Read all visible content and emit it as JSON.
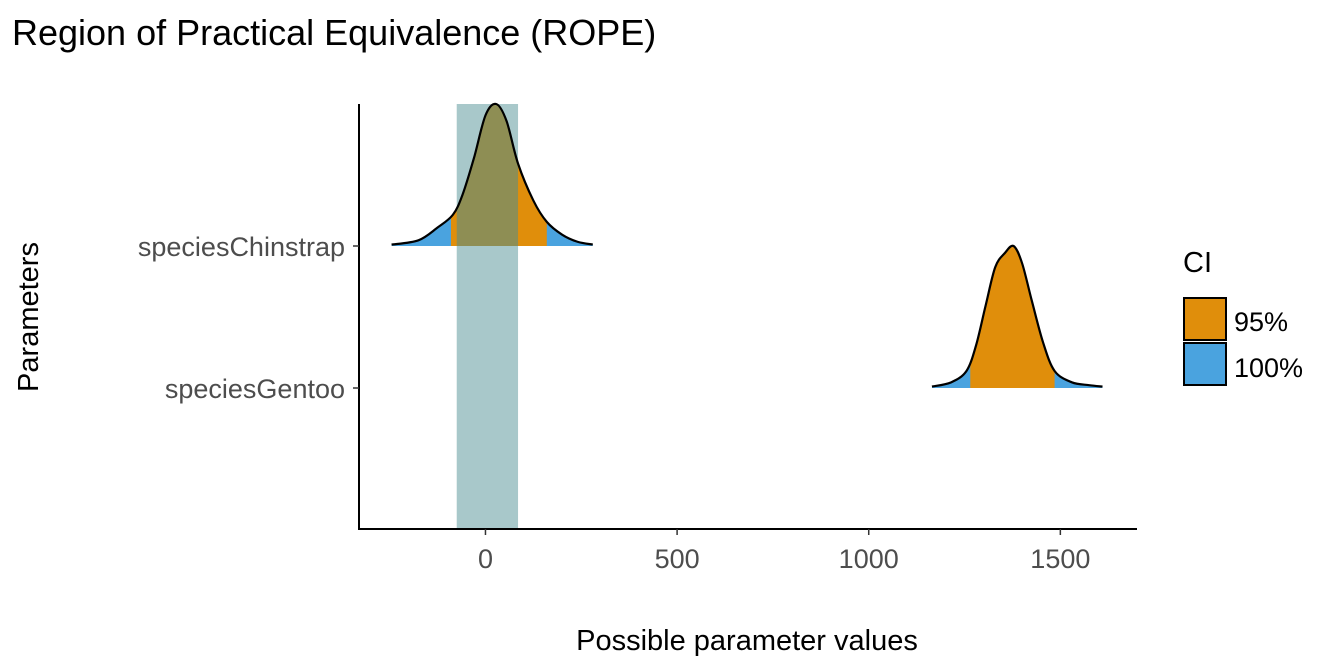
{
  "chart_data": {
    "type": "density",
    "title": "Region of Practical Equivalence (ROPE)",
    "xlabel": "Possible parameter values",
    "ylabel": "Parameters",
    "x_ticks": [
      0,
      500,
      1000,
      1500
    ],
    "xlim": [
      -330,
      1700
    ],
    "rope": [
      -75,
      85
    ],
    "colors": {
      "ci_95": "#E08E0B",
      "ci_100": "#4AA3DF",
      "rope": "#A8C8CA",
      "overlap": "#8E8E54",
      "outline": "#000000"
    },
    "legend": {
      "title": "CI",
      "placement": "right",
      "entries": [
        {
          "label": "95%",
          "color": "#E08E0B"
        },
        {
          "label": "100%",
          "color": "#4AA3DF"
        }
      ]
    },
    "series": [
      {
        "name": "speciesChinstrap",
        "density": {
          "x": [
            -245,
            -175,
            -125,
            -85,
            -60,
            -30,
            0,
            28,
            55,
            85,
            125,
            160,
            200,
            240,
            280
          ],
          "y": [
            0.01,
            0.04,
            0.13,
            0.22,
            0.36,
            0.62,
            0.92,
            1.0,
            0.88,
            0.58,
            0.32,
            0.17,
            0.08,
            0.03,
            0.01
          ]
        },
        "ci_95": [
          -90,
          160
        ],
        "ci_100": [
          -245,
          280
        ]
      },
      {
        "name": "speciesGentoo",
        "density": {
          "x": [
            1165,
            1215,
            1255,
            1280,
            1305,
            1330,
            1355,
            1378,
            1400,
            1425,
            1455,
            1485,
            1530,
            1575,
            1610
          ],
          "y": [
            0.01,
            0.04,
            0.12,
            0.3,
            0.58,
            0.85,
            0.95,
            1.0,
            0.88,
            0.62,
            0.32,
            0.12,
            0.04,
            0.02,
            0.01
          ]
        },
        "ci_95": [
          1265,
          1485
        ],
        "ci_100": [
          1165,
          1610
        ]
      }
    ]
  }
}
